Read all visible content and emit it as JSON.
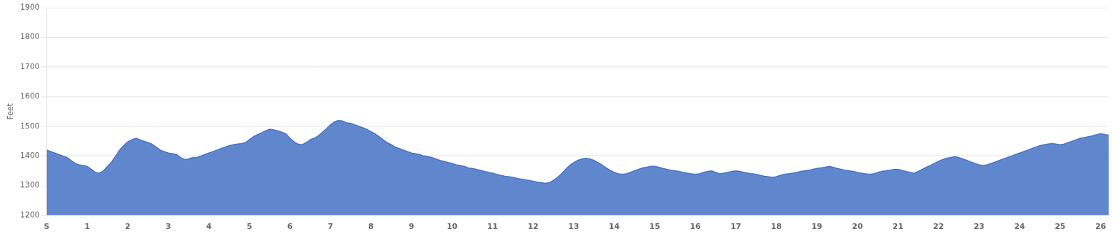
{
  "chart_data": {
    "type": "area",
    "y_label": "Feet",
    "color": "#4472C4",
    "grid": "y",
    "xlim": [
      0,
      26.2
    ],
    "ylim": [
      1200,
      1900
    ],
    "yticks": [
      1200,
      1300,
      1400,
      1500,
      1600,
      1700,
      1800,
      1900
    ],
    "xticks": [
      {
        "value": 0,
        "label": "S"
      },
      1,
      2,
      3,
      4,
      5,
      6,
      7,
      8,
      9,
      10,
      11,
      12,
      13,
      14,
      15,
      16,
      17,
      18,
      19,
      20,
      21,
      22,
      23,
      24,
      25,
      26
    ],
    "x": [
      0,
      0.1,
      0.2,
      0.3,
      0.4,
      0.5,
      0.6,
      0.7,
      0.8,
      0.9,
      1.0,
      1.1,
      1.2,
      1.3,
      1.4,
      1.5,
      1.6,
      1.7,
      1.8,
      1.9,
      2.0,
      2.1,
      2.2,
      2.3,
      2.4,
      2.5,
      2.6,
      2.7,
      2.8,
      2.9,
      3.0,
      3.1,
      3.2,
      3.3,
      3.4,
      3.5,
      3.6,
      3.7,
      3.8,
      3.9,
      4.0,
      4.1,
      4.2,
      4.3,
      4.4,
      4.5,
      4.6,
      4.7,
      4.8,
      4.9,
      5.0,
      5.1,
      5.2,
      5.3,
      5.4,
      5.5,
      5.6,
      5.7,
      5.8,
      5.9,
      6.0,
      6.1,
      6.2,
      6.3,
      6.4,
      6.5,
      6.6,
      6.7,
      6.8,
      6.9,
      7.0,
      7.1,
      7.2,
      7.3,
      7.4,
      7.5,
      7.6,
      7.7,
      7.8,
      7.9,
      8.0,
      8.1,
      8.2,
      8.3,
      8.4,
      8.5,
      8.6,
      8.7,
      8.8,
      8.9,
      9.0,
      9.1,
      9.2,
      9.3,
      9.4,
      9.5,
      9.6,
      9.7,
      9.8,
      9.9,
      10.0,
      10.1,
      10.2,
      10.3,
      10.4,
      10.5,
      10.6,
      10.7,
      10.8,
      10.9,
      11.0,
      11.1,
      11.2,
      11.3,
      11.4,
      11.5,
      11.6,
      11.7,
      11.8,
      11.9,
      12.0,
      12.1,
      12.2,
      12.3,
      12.4,
      12.5,
      12.6,
      12.7,
      12.8,
      12.9,
      13.0,
      13.1,
      13.2,
      13.3,
      13.4,
      13.5,
      13.6,
      13.7,
      13.8,
      13.9,
      14.0,
      14.1,
      14.2,
      14.3,
      14.4,
      14.5,
      14.6,
      14.7,
      14.8,
      14.9,
      15.0,
      15.1,
      15.2,
      15.3,
      15.4,
      15.5,
      15.6,
      15.7,
      15.8,
      15.9,
      16.0,
      16.1,
      16.2,
      16.3,
      16.4,
      16.5,
      16.6,
      16.7,
      16.8,
      16.9,
      17.0,
      17.1,
      17.2,
      17.3,
      17.4,
      17.5,
      17.6,
      17.7,
      17.8,
      17.9,
      18.0,
      18.1,
      18.2,
      18.3,
      18.4,
      18.5,
      18.6,
      18.7,
      18.8,
      18.9,
      19.0,
      19.1,
      19.2,
      19.3,
      19.4,
      19.5,
      19.6,
      19.7,
      19.8,
      19.9,
      20.0,
      20.1,
      20.2,
      20.3,
      20.4,
      20.5,
      20.6,
      20.7,
      20.8,
      20.9,
      21.0,
      21.1,
      21.2,
      21.3,
      21.4,
      21.5,
      21.6,
      21.7,
      21.8,
      21.9,
      22.0,
      22.1,
      22.2,
      22.3,
      22.4,
      22.5,
      22.6,
      22.7,
      22.8,
      22.9,
      23.0,
      23.1,
      23.2,
      23.3,
      23.4,
      23.5,
      23.6,
      23.7,
      23.8,
      23.9,
      24.0,
      24.1,
      24.2,
      24.3,
      24.4,
      24.5,
      24.6,
      24.7,
      24.8,
      24.9,
      25.0,
      25.1,
      25.2,
      25.3,
      25.4,
      25.5,
      25.6,
      25.7,
      25.8,
      25.9,
      26.0,
      26.2
    ],
    "values": [
      1420,
      1415,
      1410,
      1405,
      1400,
      1395,
      1385,
      1375,
      1370,
      1368,
      1365,
      1355,
      1345,
      1342,
      1350,
      1365,
      1380,
      1400,
      1420,
      1435,
      1448,
      1455,
      1460,
      1455,
      1450,
      1445,
      1440,
      1430,
      1420,
      1415,
      1410,
      1408,
      1405,
      1395,
      1388,
      1390,
      1395,
      1395,
      1400,
      1405,
      1410,
      1415,
      1420,
      1425,
      1430,
      1435,
      1438,
      1440,
      1442,
      1445,
      1455,
      1465,
      1472,
      1478,
      1485,
      1490,
      1488,
      1485,
      1480,
      1475,
      1460,
      1448,
      1440,
      1438,
      1445,
      1455,
      1460,
      1468,
      1480,
      1492,
      1505,
      1515,
      1520,
      1518,
      1512,
      1510,
      1505,
      1500,
      1495,
      1490,
      1482,
      1475,
      1465,
      1455,
      1445,
      1438,
      1430,
      1425,
      1420,
      1415,
      1410,
      1408,
      1405,
      1400,
      1398,
      1395,
      1390,
      1385,
      1382,
      1378,
      1375,
      1370,
      1368,
      1365,
      1360,
      1358,
      1355,
      1352,
      1348,
      1345,
      1342,
      1338,
      1335,
      1332,
      1330,
      1328,
      1325,
      1322,
      1320,
      1318,
      1315,
      1312,
      1310,
      1308,
      1310,
      1318,
      1328,
      1340,
      1355,
      1368,
      1378,
      1385,
      1390,
      1392,
      1390,
      1385,
      1378,
      1370,
      1360,
      1352,
      1345,
      1340,
      1338,
      1340,
      1345,
      1350,
      1355,
      1360,
      1362,
      1365,
      1365,
      1362,
      1358,
      1355,
      1352,
      1350,
      1348,
      1345,
      1342,
      1340,
      1338,
      1340,
      1345,
      1348,
      1350,
      1345,
      1340,
      1342,
      1345,
      1348,
      1350,
      1348,
      1345,
      1342,
      1340,
      1338,
      1335,
      1332,
      1330,
      1328,
      1330,
      1335,
      1338,
      1340,
      1342,
      1345,
      1348,
      1350,
      1352,
      1355,
      1358,
      1360,
      1362,
      1365,
      1362,
      1358,
      1355,
      1352,
      1350,
      1348,
      1345,
      1342,
      1340,
      1338,
      1340,
      1345,
      1348,
      1350,
      1352,
      1355,
      1355,
      1352,
      1348,
      1345,
      1342,
      1348,
      1355,
      1362,
      1368,
      1375,
      1382,
      1388,
      1392,
      1395,
      1398,
      1395,
      1390,
      1385,
      1380,
      1375,
      1370,
      1368,
      1370,
      1375,
      1380,
      1385,
      1390,
      1395,
      1400,
      1405,
      1410,
      1415,
      1420,
      1425,
      1430,
      1435,
      1438,
      1440,
      1442,
      1440,
      1438,
      1440,
      1445,
      1450,
      1455,
      1460,
      1462,
      1465,
      1468,
      1472,
      1475,
      1470
    ]
  }
}
